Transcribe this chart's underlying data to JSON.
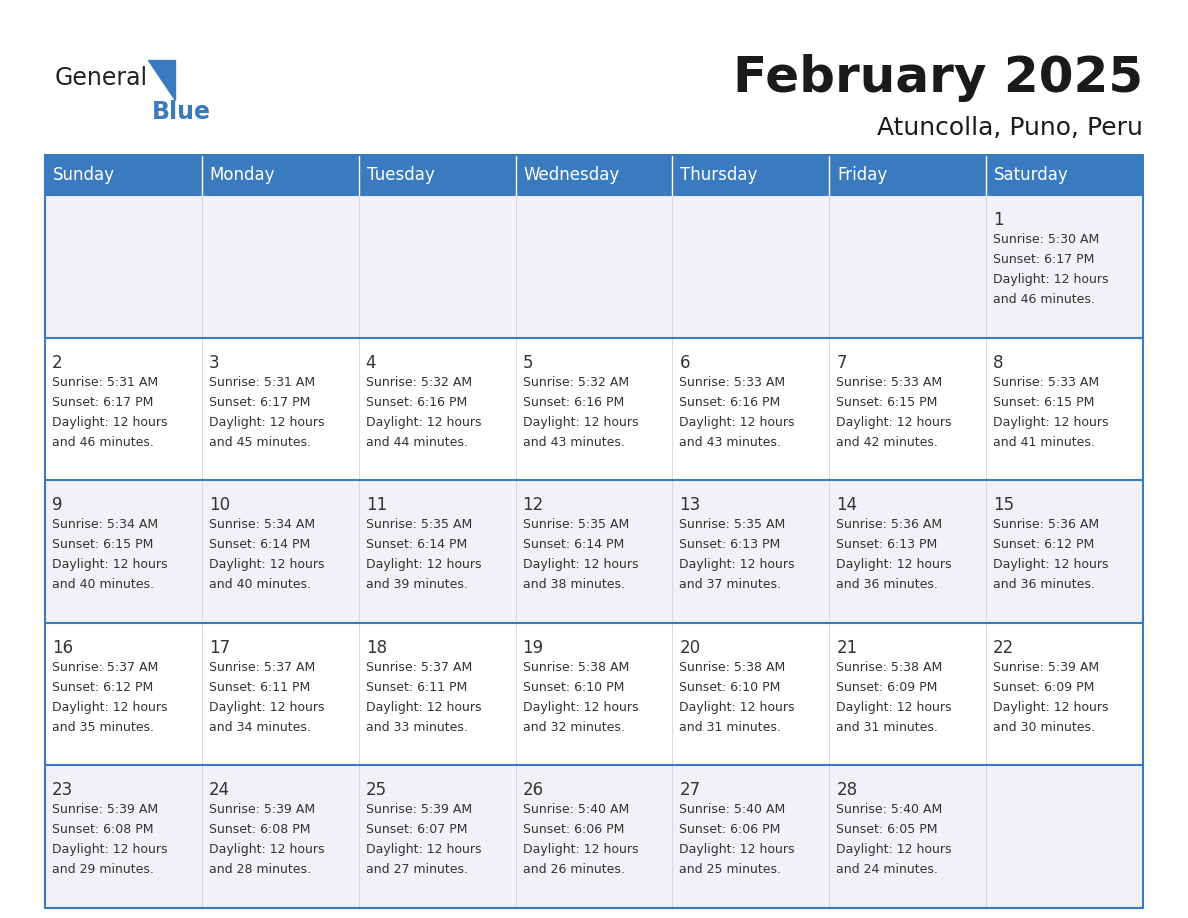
{
  "title": "February 2025",
  "subtitle": "Atuncolla, Puno, Peru",
  "header_color": "#3a7abf",
  "header_text_color": "#ffffff",
  "cell_bg_light": "#f0f2f5",
  "cell_bg_white": "#ffffff",
  "line_color": "#3a7abf",
  "text_color": "#333333",
  "day_headers": [
    "Sunday",
    "Monday",
    "Tuesday",
    "Wednesday",
    "Thursday",
    "Friday",
    "Saturday"
  ],
  "days": [
    {
      "day": 1,
      "col": 6,
      "row": 0,
      "sunrise": "5:30 AM",
      "sunset": "6:17 PM",
      "daylight_hours": "12 hours",
      "daylight_mins": "46 minutes."
    },
    {
      "day": 2,
      "col": 0,
      "row": 1,
      "sunrise": "5:31 AM",
      "sunset": "6:17 PM",
      "daylight_hours": "12 hours",
      "daylight_mins": "46 minutes."
    },
    {
      "day": 3,
      "col": 1,
      "row": 1,
      "sunrise": "5:31 AM",
      "sunset": "6:17 PM",
      "daylight_hours": "12 hours",
      "daylight_mins": "45 minutes."
    },
    {
      "day": 4,
      "col": 2,
      "row": 1,
      "sunrise": "5:32 AM",
      "sunset": "6:16 PM",
      "daylight_hours": "12 hours",
      "daylight_mins": "44 minutes."
    },
    {
      "day": 5,
      "col": 3,
      "row": 1,
      "sunrise": "5:32 AM",
      "sunset": "6:16 PM",
      "daylight_hours": "12 hours",
      "daylight_mins": "43 minutes."
    },
    {
      "day": 6,
      "col": 4,
      "row": 1,
      "sunrise": "5:33 AM",
      "sunset": "6:16 PM",
      "daylight_hours": "12 hours",
      "daylight_mins": "43 minutes."
    },
    {
      "day": 7,
      "col": 5,
      "row": 1,
      "sunrise": "5:33 AM",
      "sunset": "6:15 PM",
      "daylight_hours": "12 hours",
      "daylight_mins": "42 minutes."
    },
    {
      "day": 8,
      "col": 6,
      "row": 1,
      "sunrise": "5:33 AM",
      "sunset": "6:15 PM",
      "daylight_hours": "12 hours",
      "daylight_mins": "41 minutes."
    },
    {
      "day": 9,
      "col": 0,
      "row": 2,
      "sunrise": "5:34 AM",
      "sunset": "6:15 PM",
      "daylight_hours": "12 hours",
      "daylight_mins": "40 minutes."
    },
    {
      "day": 10,
      "col": 1,
      "row": 2,
      "sunrise": "5:34 AM",
      "sunset": "6:14 PM",
      "daylight_hours": "12 hours",
      "daylight_mins": "40 minutes."
    },
    {
      "day": 11,
      "col": 2,
      "row": 2,
      "sunrise": "5:35 AM",
      "sunset": "6:14 PM",
      "daylight_hours": "12 hours",
      "daylight_mins": "39 minutes."
    },
    {
      "day": 12,
      "col": 3,
      "row": 2,
      "sunrise": "5:35 AM",
      "sunset": "6:14 PM",
      "daylight_hours": "12 hours",
      "daylight_mins": "38 minutes."
    },
    {
      "day": 13,
      "col": 4,
      "row": 2,
      "sunrise": "5:35 AM",
      "sunset": "6:13 PM",
      "daylight_hours": "12 hours",
      "daylight_mins": "37 minutes."
    },
    {
      "day": 14,
      "col": 5,
      "row": 2,
      "sunrise": "5:36 AM",
      "sunset": "6:13 PM",
      "daylight_hours": "12 hours",
      "daylight_mins": "36 minutes."
    },
    {
      "day": 15,
      "col": 6,
      "row": 2,
      "sunrise": "5:36 AM",
      "sunset": "6:12 PM",
      "daylight_hours": "12 hours",
      "daylight_mins": "36 minutes."
    },
    {
      "day": 16,
      "col": 0,
      "row": 3,
      "sunrise": "5:37 AM",
      "sunset": "6:12 PM",
      "daylight_hours": "12 hours",
      "daylight_mins": "35 minutes."
    },
    {
      "day": 17,
      "col": 1,
      "row": 3,
      "sunrise": "5:37 AM",
      "sunset": "6:11 PM",
      "daylight_hours": "12 hours",
      "daylight_mins": "34 minutes."
    },
    {
      "day": 18,
      "col": 2,
      "row": 3,
      "sunrise": "5:37 AM",
      "sunset": "6:11 PM",
      "daylight_hours": "12 hours",
      "daylight_mins": "33 minutes."
    },
    {
      "day": 19,
      "col": 3,
      "row": 3,
      "sunrise": "5:38 AM",
      "sunset": "6:10 PM",
      "daylight_hours": "12 hours",
      "daylight_mins": "32 minutes."
    },
    {
      "day": 20,
      "col": 4,
      "row": 3,
      "sunrise": "5:38 AM",
      "sunset": "6:10 PM",
      "daylight_hours": "12 hours",
      "daylight_mins": "31 minutes."
    },
    {
      "day": 21,
      "col": 5,
      "row": 3,
      "sunrise": "5:38 AM",
      "sunset": "6:09 PM",
      "daylight_hours": "12 hours",
      "daylight_mins": "31 minutes."
    },
    {
      "day": 22,
      "col": 6,
      "row": 3,
      "sunrise": "5:39 AM",
      "sunset": "6:09 PM",
      "daylight_hours": "12 hours",
      "daylight_mins": "30 minutes."
    },
    {
      "day": 23,
      "col": 0,
      "row": 4,
      "sunrise": "5:39 AM",
      "sunset": "6:08 PM",
      "daylight_hours": "12 hours",
      "daylight_mins": "29 minutes."
    },
    {
      "day": 24,
      "col": 1,
      "row": 4,
      "sunrise": "5:39 AM",
      "sunset": "6:08 PM",
      "daylight_hours": "12 hours",
      "daylight_mins": "28 minutes."
    },
    {
      "day": 25,
      "col": 2,
      "row": 4,
      "sunrise": "5:39 AM",
      "sunset": "6:07 PM",
      "daylight_hours": "12 hours",
      "daylight_mins": "27 minutes."
    },
    {
      "day": 26,
      "col": 3,
      "row": 4,
      "sunrise": "5:40 AM",
      "sunset": "6:06 PM",
      "daylight_hours": "12 hours",
      "daylight_mins": "26 minutes."
    },
    {
      "day": 27,
      "col": 4,
      "row": 4,
      "sunrise": "5:40 AM",
      "sunset": "6:06 PM",
      "daylight_hours": "12 hours",
      "daylight_mins": "25 minutes."
    },
    {
      "day": 28,
      "col": 5,
      "row": 4,
      "sunrise": "5:40 AM",
      "sunset": "6:05 PM",
      "daylight_hours": "12 hours",
      "daylight_mins": "24 minutes."
    }
  ],
  "num_rows": 5,
  "num_cols": 7
}
